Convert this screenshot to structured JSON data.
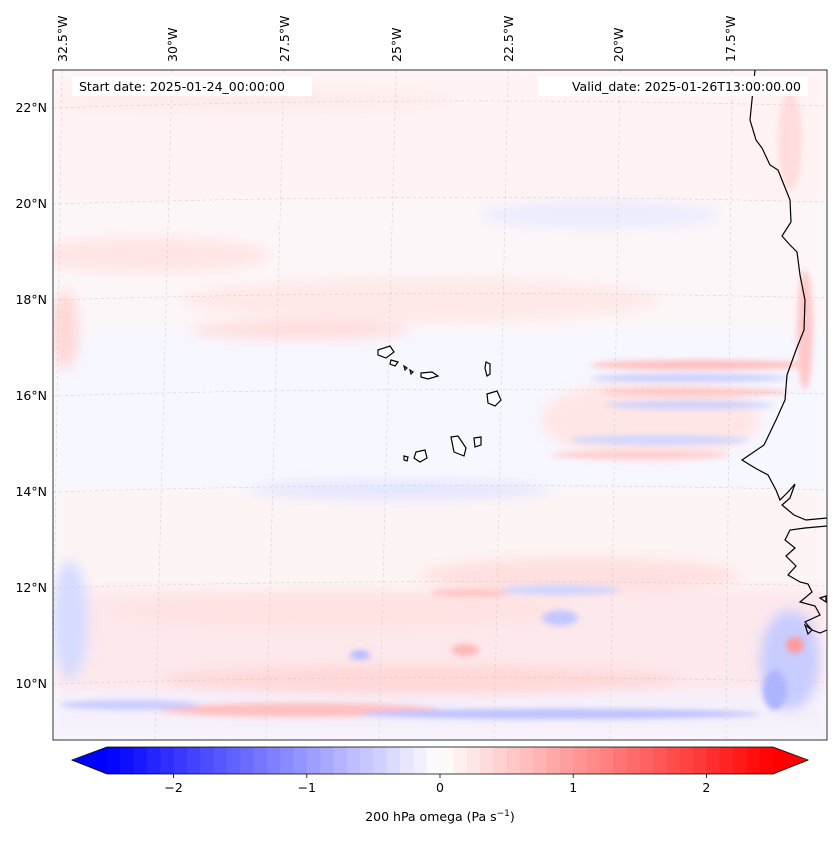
{
  "map": {
    "start_label": "Start date: 2025-01-24_00:00:00",
    "valid_label": "Valid_date: 2025-01-26T13:00:00.00",
    "lon_labels": [
      "32.5°W",
      "30°W",
      "27.5°W",
      "25°W",
      "22.5°W",
      "20°W",
      "17.5°W"
    ],
    "lat_labels": [
      "22°N",
      "20°N",
      "18°N",
      "16°N",
      "14°N",
      "12°N",
      "10°N"
    ],
    "field_colors": {
      "negative": "#0000ff",
      "zero": "#ffffff",
      "positive": "#ff0000"
    }
  },
  "colorbar": {
    "label_main": "200 hPa omega (Pa s",
    "label_exp": "−1",
    "label_close": ")",
    "ticks": [
      "−2",
      "−1",
      "0",
      "1",
      "2"
    ],
    "tick_values": [
      -2,
      -1,
      0,
      1,
      2
    ],
    "range": [
      -2.5,
      2.5
    ]
  }
}
